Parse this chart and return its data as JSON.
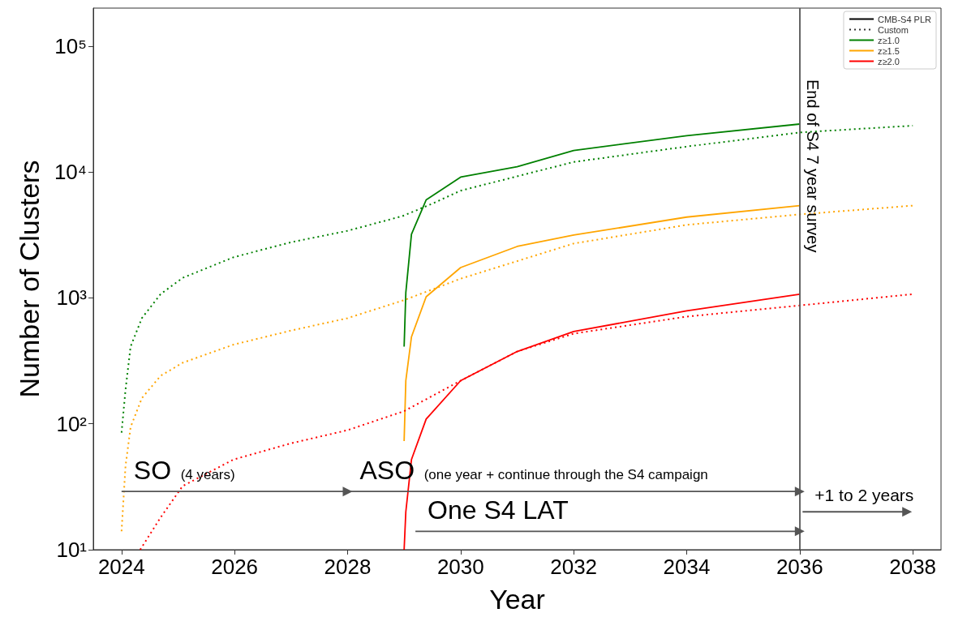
{
  "chart_data": {
    "type": "line",
    "xlabel": "Year",
    "ylabel": "Number of Clusters",
    "xlim": [
      2023.5,
      2038.5
    ],
    "xticks": [
      2024,
      2026,
      2028,
      2030,
      2032,
      2034,
      2036,
      2038
    ],
    "ylim": [
      10,
      200000
    ],
    "log": "y",
    "yticks": [
      {
        "value": 10,
        "label": "10¹"
      },
      {
        "value": 100,
        "label": "10²"
      },
      {
        "value": 1000,
        "label": "10³"
      },
      {
        "value": 10000,
        "label": "10⁴"
      },
      {
        "value": 100000,
        "label": "10⁵"
      }
    ],
    "grid": false,
    "legend": "top right",
    "marker": "none",
    "series": [
      {
        "name": "CMB-S4 PLR",
        "color": "#000000",
        "line_style": "solid"
      },
      {
        "name": "Custom",
        "color": "#333333",
        "line_style": "dotted"
      },
      {
        "name": "z≥1.0",
        "color": "#008000",
        "line_style": "solid",
        "x": [
          2029,
          2029.03,
          2029.13,
          2029.39,
          2030,
          2031,
          2032,
          2034,
          2036
        ],
        "values": [
          410,
          1100,
          3200,
          6000,
          9100,
          11000,
          14800,
          19400,
          24000
        ]
      },
      {
        "name": "z≥1.5",
        "color": "#ffa500",
        "line_style": "solid",
        "x": [
          2029,
          2029.03,
          2029.13,
          2029.39,
          2030,
          2031,
          2032,
          2034,
          2036
        ],
        "values": [
          73,
          220,
          490,
          1020,
          1740,
          2560,
          3150,
          4380,
          5400
        ]
      },
      {
        "name": "z≥2.0",
        "color": "#ff0000",
        "line_style": "solid",
        "x": [
          2029,
          2029.03,
          2029.13,
          2029.39,
          2030,
          2031,
          2032,
          2034,
          2036
        ],
        "values": [
          10,
          20,
          52,
          109,
          220,
          375,
          540,
          790,
          1070
        ]
      },
      {
        "color": "#008000",
        "line_style": "dotted",
        "x": [
          2024,
          2024.07,
          2024.16,
          2024.36,
          2024.69,
          2025.08,
          2025.98,
          2026.99,
          2027.99,
          2028.97,
          2029.5,
          2030,
          2032,
          2034,
          2036,
          2038
        ],
        "values": [
          85,
          186,
          410,
          690,
          1070,
          1440,
          2100,
          2760,
          3400,
          4460,
          5600,
          7100,
          12000,
          15900,
          20600,
          23300
        ]
      },
      {
        "color": "#ffa500",
        "line_style": "dotted",
        "x": [
          2024,
          2024.07,
          2024.16,
          2024.36,
          2024.69,
          2025.08,
          2025.98,
          2027,
          2028,
          2029,
          2030,
          2032,
          2034,
          2036,
          2038
        ],
        "values": [
          14,
          46,
          94,
          160,
          240,
          305,
          425,
          550,
          690,
          960,
          1420,
          2700,
          3800,
          4600,
          5400
        ]
      },
      {
        "color": "#ff0000",
        "line_style": "dotted",
        "x": [
          2024.33,
          2024.69,
          2025.08,
          2025.98,
          2027,
          2028,
          2029,
          2030,
          2031,
          2032,
          2034,
          2036,
          2038
        ],
        "values": [
          10,
          18,
          32,
          52,
          70,
          89,
          126,
          220,
          375,
          520,
          710,
          870,
          1070
        ]
      },
      {
        "name": "SO (4 years)",
        "color": "#555555",
        "line_style": "solid",
        "marker": "triangle",
        "x": [
          2024,
          2028
        ],
        "values": [
          29,
          29
        ]
      },
      {
        "name": "ASO (one year + continue through the S4 campaign",
        "color": "#555555",
        "line_style": "solid",
        "marker": "triangle",
        "x": [
          2028,
          2036
        ],
        "values": [
          29,
          29
        ]
      },
      {
        "name": "One S4 LAT",
        "color": "#555555",
        "line_style": "solid",
        "marker": "triangle",
        "x": [
          2029.2,
          2036
        ],
        "values": [
          14,
          14
        ]
      },
      {
        "name": "+1 to 2 years",
        "color": "#555555",
        "line_style": "solid",
        "marker": "triangle",
        "x": [
          2036.05,
          2037.9
        ],
        "values": [
          20,
          20
        ]
      }
    ],
    "ref_lines": [
      {
        "axis": "x",
        "value": 2036,
        "label": "End of S4 7 year survey",
        "color": "#555555"
      }
    ]
  }
}
